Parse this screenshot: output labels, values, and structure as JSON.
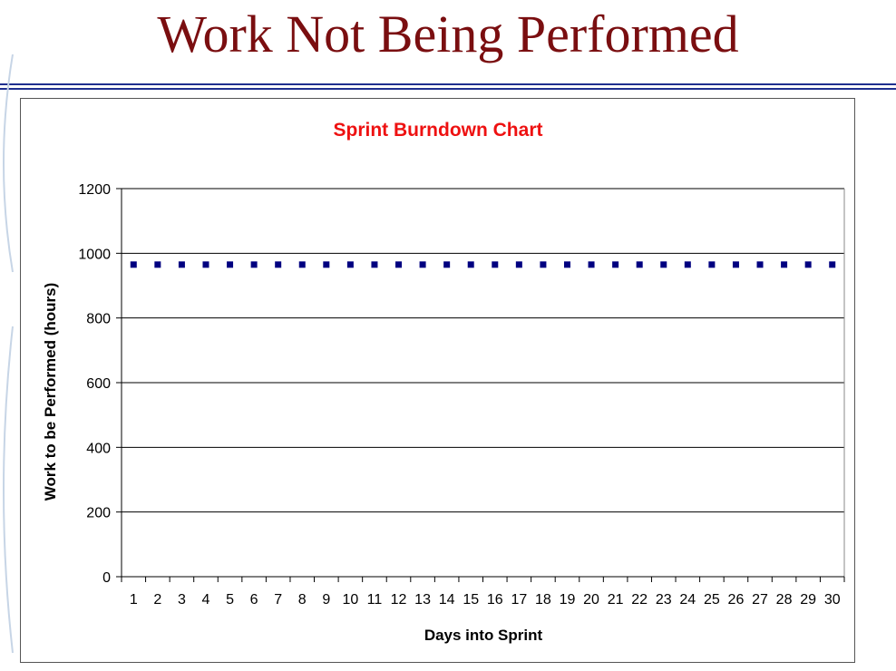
{
  "slide": {
    "title": "Work Not Being Performed"
  },
  "colors": {
    "title": "#7a0e10",
    "chart_title": "#ee1111",
    "marker": "#000080",
    "rule": "#1f2f8f"
  },
  "chart_data": {
    "type": "line",
    "title": "Sprint Burndown Chart",
    "xlabel": "Days into Sprint",
    "ylabel": "Work to be Performed (hours)",
    "ylim": [
      0,
      1200
    ],
    "yticks": [
      0,
      200,
      400,
      600,
      800,
      1000,
      1200
    ],
    "grid": true,
    "legend": "none",
    "categories": [
      1,
      2,
      3,
      4,
      5,
      6,
      7,
      8,
      9,
      10,
      11,
      12,
      13,
      14,
      15,
      16,
      17,
      18,
      19,
      20,
      21,
      22,
      23,
      24,
      25,
      26,
      27,
      28,
      29,
      30
    ],
    "series": [
      {
        "values": [
          965,
          965,
          965,
          965,
          965,
          965,
          965,
          965,
          965,
          965,
          965,
          965,
          965,
          965,
          965,
          965,
          965,
          965,
          965,
          965,
          965,
          965,
          965,
          965,
          965,
          965,
          965,
          965,
          965,
          965
        ],
        "marker": "square",
        "line": "none"
      }
    ]
  }
}
